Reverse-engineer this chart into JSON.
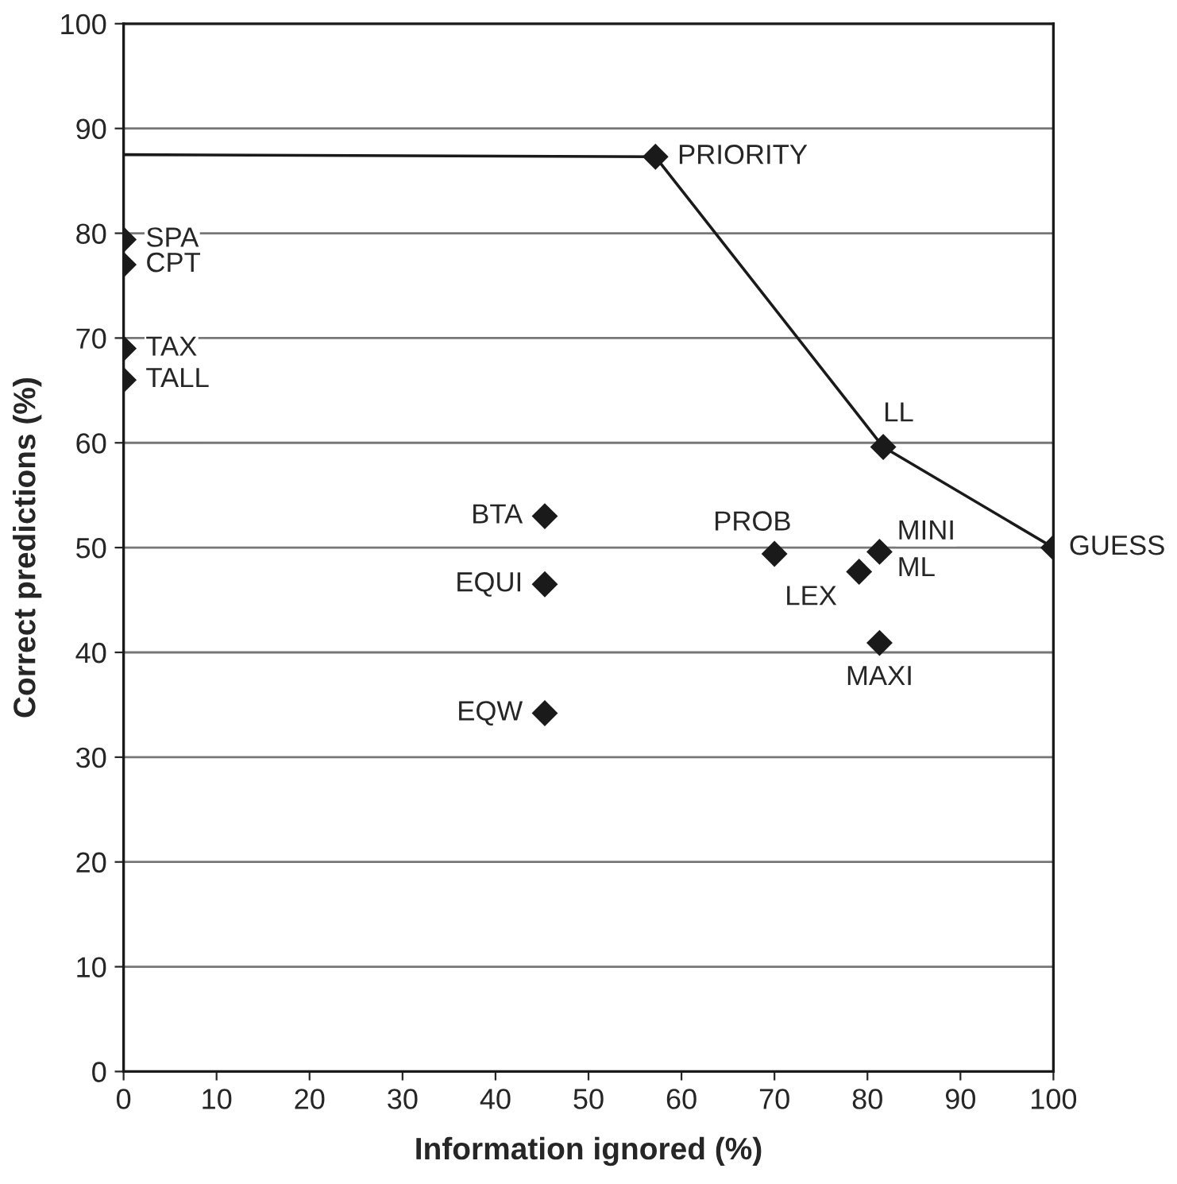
{
  "chart_data": {
    "type": "scatter",
    "xlabel": "Information ignored (%)",
    "ylabel": "Correct predictions (%)",
    "series": [
      {
        "type": "line",
        "color": "#1a1a1a",
        "x": [
          0,
          57.2,
          81.7,
          100
        ],
        "values": [
          87.5,
          87.3,
          59.6,
          50
        ],
        "marker": "none"
      },
      {
        "color": "#1a1a1a",
        "marker": "diamond",
        "x": [
          57.2,
          0,
          0,
          0,
          0,
          81.7,
          45.3,
          45.3,
          45.3,
          70.0,
          81.3,
          79.1,
          81.3,
          100
        ],
        "values": [
          87.3,
          79.4,
          77.0,
          69.0,
          66.0,
          59.6,
          53.0,
          46.5,
          34.2,
          49.4,
          49.6,
          47.7,
          40.9,
          50
        ]
      }
    ],
    "annotations": [
      {
        "text": "PRIORITY",
        "x": 57.2,
        "y": 87.3
      },
      {
        "text": "SPA",
        "x": 0,
        "y": 79.4
      },
      {
        "text": "CPT",
        "x": 0,
        "y": 77.0
      },
      {
        "text": "TAX",
        "x": 0,
        "y": 69.0
      },
      {
        "text": "TALL",
        "x": 0,
        "y": 66.0
      },
      {
        "text": "LL",
        "x": 81.7,
        "y": 59.6
      },
      {
        "text": "BTA",
        "x": 45.3,
        "y": 53.0
      },
      {
        "text": "EQUI",
        "x": 45.3,
        "y": 46.5
      },
      {
        "text": "EQW",
        "x": 45.3,
        "y": 34.2
      },
      {
        "text": "PROB",
        "x": 70.0,
        "y": 49.4
      },
      {
        "text": "MINI",
        "x": 81.3,
        "y": 49.6
      },
      {
        "text": "ML",
        "x": 81.3,
        "y": 49.6
      },
      {
        "text": "LEX",
        "x": 79.1,
        "y": 47.7
      },
      {
        "text": "MAXI",
        "x": 81.3,
        "y": 40.9
      },
      {
        "text": "GUESS",
        "x": 100,
        "y": 50
      }
    ],
    "xlim": [
      0,
      100
    ],
    "ylim": [
      0,
      100
    ],
    "xticks": [
      0,
      10,
      20,
      30,
      40,
      50,
      60,
      70,
      80,
      90,
      100
    ],
    "yticks": [
      0,
      10,
      20,
      30,
      40,
      50,
      60,
      70,
      80,
      90,
      100
    ],
    "grid": "y",
    "legend": false
  }
}
